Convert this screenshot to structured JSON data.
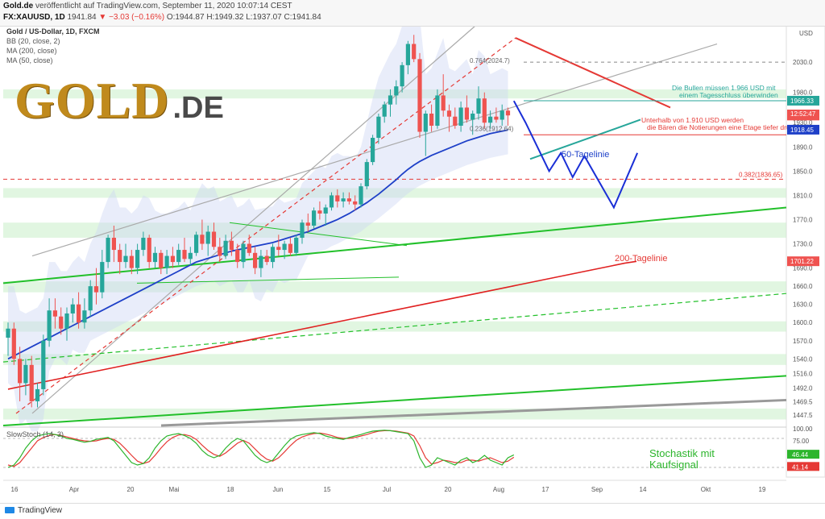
{
  "header": {
    "site": "Gold.de",
    "published": "veröffentlicht auf TradingView.com, September 11, 2020 10:07:14 CEST",
    "symbol": "FX:XAUUSD, 1D",
    "last": "1941.84",
    "change": "▼ −3.03 (−0.16%)",
    "open": "O:1944.87",
    "high": "H:1949.32",
    "low": "L:1937.07",
    "close": "C:1941.84"
  },
  "indicators": {
    "title": "Gold / US-Dollar, 1D, FXCM",
    "bb": "BB (20, close, 2)",
    "ma200": "MA (200, close)",
    "ma50": "MA (50, close)",
    "stoch": "SlowStoch (14, 3)"
  },
  "brand": {
    "main": "GOLD",
    "suffix": ".DE"
  },
  "footer": {
    "tradingview": "TradingView"
  },
  "colors": {
    "up": "#26a69a",
    "down": "#ef5350",
    "ma50": "#1e40c8",
    "ma200": "#e02020",
    "zone": "#c8efc8",
    "projection": "#1a2fd6"
  },
  "chart_data": {
    "type": "candlestick",
    "currency_label": "USD",
    "ylim": [
      1430,
      2090
    ],
    "x_labels": [
      "16",
      "Apr",
      "20",
      "Mai",
      "18",
      "Jun",
      "15",
      "Jul",
      "20",
      "Aug",
      "17",
      "Sep",
      "14",
      "Okt",
      "19"
    ],
    "y_ticks": [
      2030.0,
      1980.0,
      1930.0,
      1890.0,
      1850.0,
      1810.0,
      1770.0,
      1730.0,
      1690.0,
      1660.0,
      1630.0,
      1600.0,
      1570.0,
      1540.0,
      1516.0,
      1492.0,
      1469.5,
      1447.5
    ],
    "price_tags": [
      {
        "value": 1966.33,
        "color": "#26a69a"
      },
      {
        "value": 1941.84,
        "color": "#ef5350"
      },
      {
        "value": 1918.45,
        "color": "#1e40c8"
      },
      {
        "value": 1701.22,
        "color": "#ef5350"
      }
    ],
    "countdown": "12:52:47",
    "candles": [
      [
        1575,
        1600,
        1545,
        1590
      ],
      [
        1590,
        1600,
        1530,
        1540
      ],
      [
        1540,
        1560,
        1470,
        1500
      ],
      [
        1500,
        1540,
        1480,
        1530
      ],
      [
        1530,
        1545,
        1460,
        1470
      ],
      [
        1470,
        1500,
        1460,
        1490
      ],
      [
        1490,
        1580,
        1480,
        1570
      ],
      [
        1570,
        1640,
        1560,
        1620
      ],
      [
        1620,
        1640,
        1590,
        1610
      ],
      [
        1610,
        1625,
        1580,
        1590
      ],
      [
        1590,
        1625,
        1570,
        1615
      ],
      [
        1615,
        1640,
        1600,
        1630
      ],
      [
        1630,
        1650,
        1590,
        1600
      ],
      [
        1600,
        1640,
        1590,
        1620
      ],
      [
        1620,
        1670,
        1610,
        1660
      ],
      [
        1660,
        1690,
        1630,
        1650
      ],
      [
        1650,
        1720,
        1640,
        1700
      ],
      [
        1700,
        1745,
        1690,
        1740
      ],
      [
        1740,
        1760,
        1700,
        1720
      ],
      [
        1720,
        1730,
        1680,
        1700
      ],
      [
        1700,
        1730,
        1690,
        1710
      ],
      [
        1710,
        1720,
        1680,
        1690
      ],
      [
        1690,
        1730,
        1680,
        1720
      ],
      [
        1720,
        1750,
        1710,
        1740
      ],
      [
        1740,
        1745,
        1690,
        1700
      ],
      [
        1700,
        1725,
        1690,
        1715
      ],
      [
        1715,
        1720,
        1680,
        1690
      ],
      [
        1690,
        1720,
        1680,
        1710
      ],
      [
        1710,
        1725,
        1690,
        1700
      ],
      [
        1700,
        1730,
        1695,
        1720
      ],
      [
        1720,
        1740,
        1700,
        1705
      ],
      [
        1705,
        1725,
        1695,
        1715
      ],
      [
        1715,
        1750,
        1710,
        1745
      ],
      [
        1745,
        1770,
        1720,
        1730
      ],
      [
        1730,
        1760,
        1710,
        1750
      ],
      [
        1750,
        1765,
        1720,
        1725
      ],
      [
        1725,
        1740,
        1700,
        1710
      ],
      [
        1710,
        1745,
        1705,
        1735
      ],
      [
        1735,
        1750,
        1710,
        1720
      ],
      [
        1720,
        1730,
        1690,
        1700
      ],
      [
        1700,
        1735,
        1690,
        1730
      ],
      [
        1730,
        1745,
        1710,
        1715
      ],
      [
        1715,
        1725,
        1680,
        1690
      ],
      [
        1690,
        1720,
        1675,
        1710
      ],
      [
        1710,
        1720,
        1695,
        1700
      ],
      [
        1700,
        1730,
        1690,
        1725
      ],
      [
        1725,
        1745,
        1710,
        1720
      ],
      [
        1720,
        1735,
        1705,
        1730
      ],
      [
        1730,
        1740,
        1710,
        1715
      ],
      [
        1715,
        1745,
        1710,
        1740
      ],
      [
        1740,
        1770,
        1730,
        1765
      ],
      [
        1765,
        1780,
        1750,
        1760
      ],
      [
        1760,
        1790,
        1755,
        1785
      ],
      [
        1785,
        1800,
        1770,
        1780
      ],
      [
        1780,
        1795,
        1760,
        1790
      ],
      [
        1790,
        1815,
        1785,
        1810
      ],
      [
        1810,
        1820,
        1790,
        1800
      ],
      [
        1800,
        1815,
        1790,
        1805
      ],
      [
        1805,
        1815,
        1795,
        1800
      ],
      [
        1800,
        1810,
        1785,
        1795
      ],
      [
        1795,
        1830,
        1790,
        1825
      ],
      [
        1825,
        1870,
        1820,
        1865
      ],
      [
        1865,
        1910,
        1860,
        1905
      ],
      [
        1905,
        1945,
        1895,
        1940
      ],
      [
        1940,
        1965,
        1930,
        1960
      ],
      [
        1960,
        1985,
        1940,
        1975
      ],
      [
        1975,
        2000,
        1960,
        1990
      ],
      [
        1990,
        2030,
        1980,
        2025
      ],
      [
        2025,
        2065,
        2010,
        2060
      ],
      [
        2060,
        2075,
        2030,
        2035
      ],
      [
        2035,
        2045,
        1905,
        1915
      ],
      [
        1915,
        1950,
        1875,
        1945
      ],
      [
        1945,
        1960,
        1915,
        1925
      ],
      [
        1925,
        1985,
        1920,
        1975
      ],
      [
        1975,
        2010,
        1940,
        1950
      ],
      [
        1950,
        1960,
        1915,
        1940
      ],
      [
        1940,
        1955,
        1920,
        1925
      ],
      [
        1925,
        1965,
        1915,
        1955
      ],
      [
        1955,
        1975,
        1930,
        1935
      ],
      [
        1935,
        1950,
        1910,
        1945
      ],
      [
        1945,
        1990,
        1935,
        1970
      ],
      [
        1970,
        1980,
        1920,
        1930
      ],
      [
        1930,
        1950,
        1920,
        1940
      ],
      [
        1940,
        1955,
        1930,
        1935
      ],
      [
        1935,
        1960,
        1925,
        1950
      ],
      [
        1950,
        1955,
        1925,
        1942
      ]
    ],
    "ma50": [
      1540,
      1545,
      1550,
      1555,
      1560,
      1565,
      1570,
      1575,
      1580,
      1585,
      1590,
      1595,
      1600,
      1605,
      1610,
      1615,
      1620,
      1625,
      1630,
      1635,
      1640,
      1645,
      1650,
      1655,
      1660,
      1665,
      1670,
      1675,
      1680,
      1685,
      1690,
      1695,
      1700,
      1703,
      1706,
      1709,
      1712,
      1715,
      1718,
      1720,
      1722,
      1724,
      1726,
      1728,
      1730,
      1732,
      1735,
      1738,
      1741,
      1744,
      1747,
      1750,
      1754,
      1758,
      1762,
      1766,
      1770,
      1775,
      1780,
      1786,
      1792,
      1798,
      1805,
      1812,
      1820,
      1828,
      1836,
      1845,
      1853,
      1860,
      1866,
      1871,
      1876,
      1880,
      1884,
      1888,
      1892,
      1896,
      1900,
      1903,
      1906,
      1909,
      1912,
      1914,
      1916,
      1918
    ],
    "ma200": [
      1490,
      1494,
      1498,
      1502,
      1506,
      1510,
      1514,
      1518,
      1522,
      1526,
      1530,
      1534,
      1538,
      1542,
      1546,
      1550,
      1554,
      1558,
      1562,
      1566,
      1570,
      1574,
      1578,
      1582,
      1586,
      1590,
      1594,
      1598,
      1602,
      1606,
      1610,
      1614,
      1618,
      1622,
      1626,
      1630,
      1634,
      1638,
      1642,
      1646,
      1650,
      1654,
      1658,
      1662,
      1666,
      1670,
      1674,
      1678,
      1682,
      1686,
      1690,
      1694,
      1698,
      1701
    ],
    "fibonacci": [
      {
        "label": "0.764(2024.7)",
        "value": 2024.7
      },
      {
        "label": "0.236(1912.64)",
        "value": 1912.64
      },
      {
        "label": "0.382(1836.65)",
        "value": 1836.65
      }
    ],
    "projection_path": [
      [
        86,
        1966
      ],
      [
        88,
        1930
      ],
      [
        92,
        1850
      ],
      [
        94,
        1880
      ],
      [
        96,
        1840
      ],
      [
        98,
        1875
      ],
      [
        103,
        1790
      ],
      [
        107,
        1880
      ]
    ],
    "annotations": {
      "bulls": "Die Bullen müssen 1.966 USD mit einem Tagesschluss überwinden",
      "bears": "Unterhalb von 1.910 USD werden die Bären die Notierungen eine Etage tiefer drücken",
      "ma50": "50-Tagelinie",
      "ma200": "200-Tagelinie",
      "stoch": "Stochastik mit Kaufsignal"
    },
    "stochastic": {
      "ylim": [
        0,
        100
      ],
      "y_ticks": [
        "100.00",
        "75.00",
        "50.00",
        "25.00"
      ],
      "current_k": "46.44",
      "current_d": "41.14",
      "k": [
        20,
        25,
        40,
        60,
        75,
        85,
        88,
        90,
        88,
        85,
        80,
        78,
        75,
        72,
        74,
        78,
        80,
        82,
        75,
        60,
        45,
        30,
        25,
        28,
        40,
        60,
        75,
        85,
        88,
        90,
        86,
        80,
        70,
        55,
        45,
        40,
        45,
        60,
        72,
        80,
        75,
        60,
        45,
        35,
        30,
        35,
        50,
        65,
        78,
        85,
        88,
        90,
        92,
        90,
        85,
        82,
        80,
        78,
        82,
        85,
        88,
        92,
        95,
        96,
        97,
        96,
        94,
        92,
        90,
        75,
        40,
        20,
        25,
        40,
        35,
        30,
        25,
        35,
        40,
        30,
        35,
        45,
        35,
        30,
        25,
        40,
        46
      ],
      "d": [
        25,
        22,
        30,
        45,
        60,
        75,
        82,
        86,
        88,
        86,
        83,
        80,
        77,
        75,
        74,
        75,
        78,
        80,
        78,
        70,
        58,
        45,
        33,
        28,
        32,
        45,
        60,
        73,
        82,
        87,
        88,
        85,
        78,
        66,
        55,
        47,
        43,
        50,
        60,
        70,
        76,
        70,
        58,
        46,
        37,
        33,
        40,
        52,
        65,
        76,
        83,
        87,
        90,
        91,
        89,
        86,
        82,
        80,
        80,
        82,
        85,
        88,
        92,
        95,
        96,
        96,
        95,
        93,
        91,
        85,
        65,
        40,
        27,
        30,
        35,
        33,
        30,
        30,
        35,
        35,
        33,
        37,
        40,
        35,
        30,
        33,
        41
      ]
    }
  }
}
